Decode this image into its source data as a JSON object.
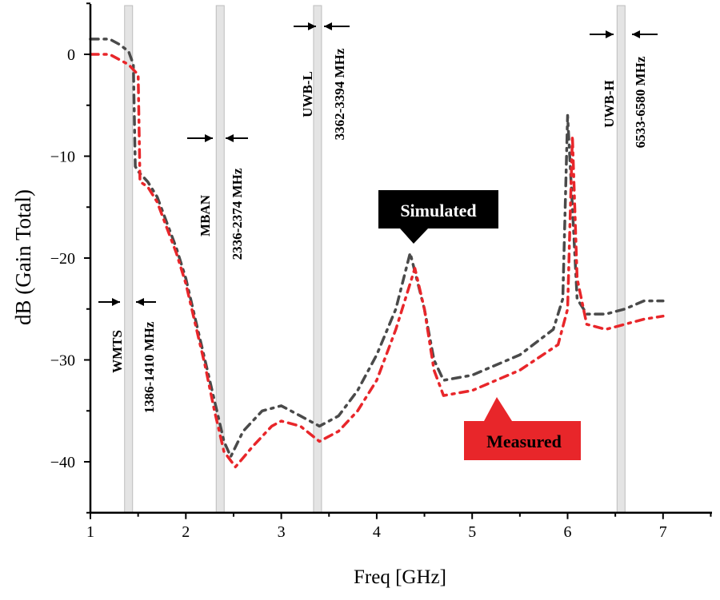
{
  "chart_data": {
    "type": "line",
    "xlabel": "Freq [GHz]",
    "ylabel": "dB (Gain Total)",
    "xlim": [
      1,
      7.5
    ],
    "ylim": [
      -45,
      5
    ],
    "xticks": [
      1,
      2,
      3,
      4,
      5,
      6,
      7
    ],
    "yticks": [
      0,
      -10,
      -20,
      -30,
      -40
    ],
    "grid": false,
    "series": [
      {
        "name": "Simulated",
        "color": "#4a4a4a",
        "x": [
          1.0,
          1.2,
          1.3,
          1.4,
          1.45,
          1.47,
          1.5,
          1.6,
          1.7,
          1.8,
          1.9,
          2.0,
          2.1,
          2.2,
          2.3,
          2.4,
          2.47,
          2.6,
          2.8,
          3.0,
          3.2,
          3.4,
          3.6,
          3.8,
          4.0,
          4.2,
          4.35,
          4.5,
          4.6,
          4.7,
          5.0,
          5.5,
          5.85,
          5.95,
          6.0,
          6.05,
          6.1,
          6.2,
          6.4,
          6.6,
          6.8,
          7.0
        ],
        "y": [
          1.5,
          1.5,
          1.0,
          0.3,
          -1,
          -11,
          -11.5,
          -12.5,
          -14,
          -16.5,
          -19,
          -22,
          -26,
          -30,
          -34,
          -38,
          -39.5,
          -37,
          -35,
          -34.5,
          -35.5,
          -36.5,
          -35.5,
          -33,
          -29.5,
          -25,
          -19.5,
          -25,
          -30,
          -32,
          -31.5,
          -29.5,
          -27,
          -24,
          -6,
          -15,
          -24,
          -25.5,
          -25.5,
          -25,
          -24.2,
          -24.2
        ]
      },
      {
        "name": "Measured",
        "color": "#e8262a",
        "x": [
          1.0,
          1.2,
          1.3,
          1.4,
          1.5,
          1.52,
          1.6,
          1.7,
          1.8,
          1.9,
          2.0,
          2.1,
          2.2,
          2.3,
          2.4,
          2.52,
          2.7,
          2.9,
          3.0,
          3.2,
          3.4,
          3.6,
          3.8,
          4.0,
          4.2,
          4.4,
          4.5,
          4.6,
          4.7,
          5.0,
          5.5,
          5.9,
          6.0,
          6.05,
          6.1,
          6.2,
          6.4,
          6.6,
          6.8,
          7.0
        ],
        "y": [
          0,
          0,
          -0.5,
          -1,
          -2,
          -12.5,
          -13,
          -14.5,
          -17,
          -19.5,
          -22.5,
          -26.5,
          -30.5,
          -35,
          -39,
          -40.5,
          -38.5,
          -36.5,
          -36,
          -36.5,
          -38,
          -37,
          -35,
          -32,
          -27,
          -21,
          -25,
          -31,
          -33.5,
          -33,
          -31,
          -28.5,
          -25,
          -8,
          -22,
          -26.5,
          -27,
          -26.5,
          -26,
          -25.7
        ]
      }
    ],
    "bands": [
      {
        "name": "WMTS",
        "range_label": "1386-1410 MHz",
        "center_ghz": 1.4
      },
      {
        "name": "MBAN",
        "range_label": "2336-2374 MHz",
        "center_ghz": 2.36
      },
      {
        "name": "UWB-L",
        "range_label": "3362-3394 MHz",
        "center_ghz": 3.38
      },
      {
        "name": "UWB-H",
        "range_label": "6533-6580 MHz",
        "center_ghz": 6.56
      }
    ],
    "callouts": [
      {
        "text": "Simulated",
        "color": "#000000"
      },
      {
        "text": "Measured",
        "color": "#e8262a"
      }
    ]
  }
}
